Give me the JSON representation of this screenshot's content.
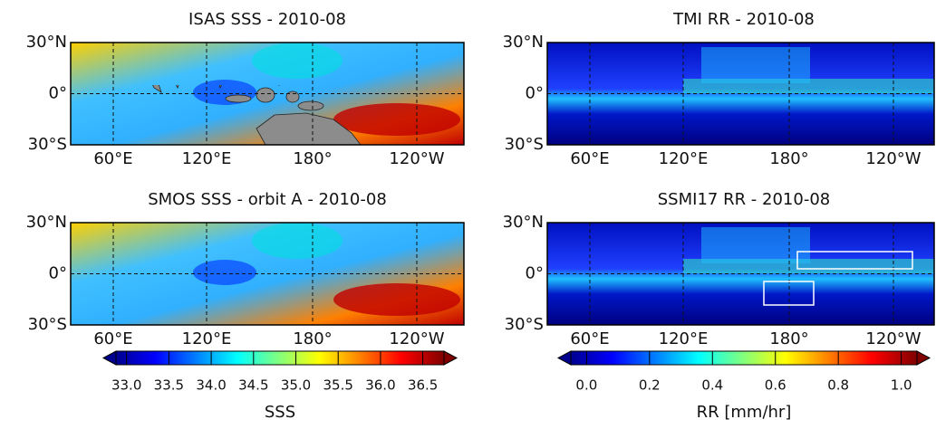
{
  "panels": [
    {
      "title": "ISAS SSS  - 2010-08",
      "lat_labels": [
        "30°N",
        "0°",
        "30°S"
      ],
      "lon_labels": [
        "60°E",
        "120°E",
        "180°",
        "120°W"
      ]
    },
    {
      "title": "TMI RR  - 2010-08",
      "lat_labels": [
        "30°N",
        "0°",
        "30°S"
      ],
      "lon_labels": [
        "60°E",
        "120°E",
        "180°",
        "120°W"
      ]
    },
    {
      "title": "SMOS SSS  - orbit A - 2010-08",
      "lat_labels": [
        "30°N",
        "0°",
        "30°S"
      ],
      "lon_labels": [
        "60°E",
        "120°E",
        "180°",
        "120°W"
      ]
    },
    {
      "title": "SSMI17 RR  - 2010-08",
      "lat_labels": [
        "30°N",
        "0°",
        "30°S"
      ],
      "lon_labels": [
        "60°E",
        "120°E",
        "180°",
        "120°W"
      ]
    }
  ],
  "colorbars": [
    {
      "label": "SSS",
      "lim": [
        32.875,
        36.75
      ],
      "ticks": [
        {
          "value": 33,
          "label": "33.0"
        },
        33.5,
        {
          "value": 34,
          "label": "34.0"
        },
        34.5,
        {
          "value": 35,
          "label": "35.0"
        },
        35.5,
        {
          "value": 36,
          "label": "36.0"
        },
        36.5
      ]
    },
    {
      "label": "RR [mm/hr]",
      "lim": [
        -0.05,
        1.05
      ],
      "ticks": [
        {
          "value": 0,
          "label": "0.0"
        },
        0.2,
        0.4,
        0.6,
        0.8,
        {
          "value": 1,
          "label": "1.0"
        }
      ]
    }
  ]
}
